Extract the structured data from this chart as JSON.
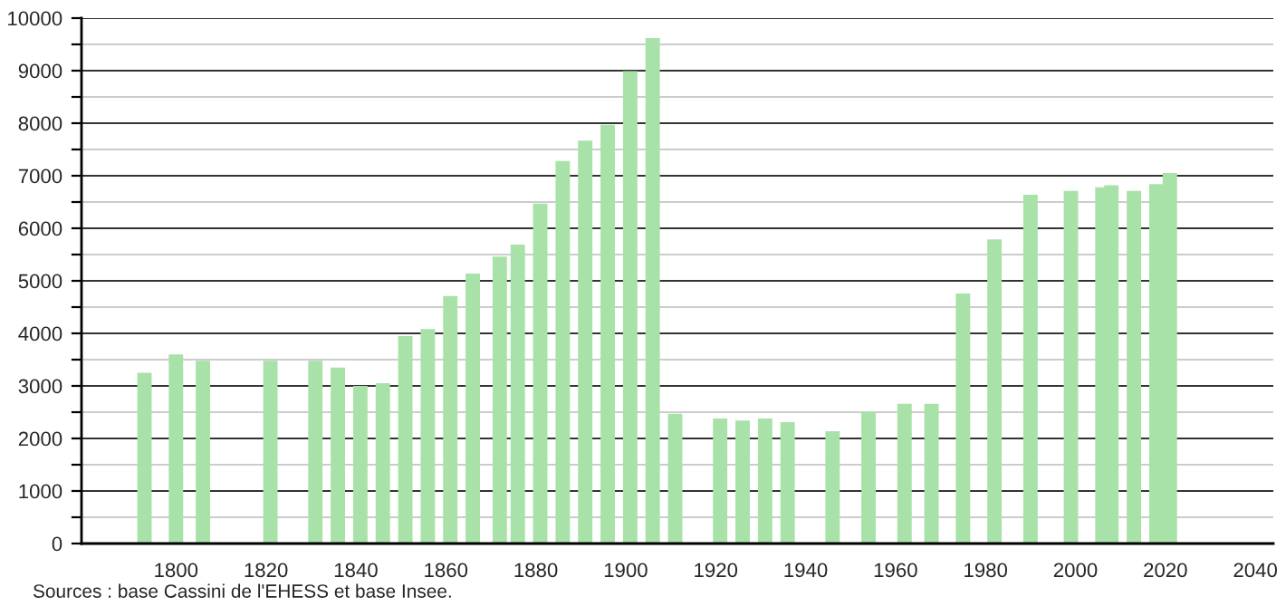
{
  "chart_data": {
    "type": "bar",
    "x": [
      1793,
      1800,
      1806,
      1821,
      1831,
      1836,
      1841,
      1846,
      1851,
      1856,
      1861,
      1866,
      1872,
      1876,
      1881,
      1886,
      1891,
      1896,
      1901,
      1906,
      1911,
      1921,
      1926,
      1931,
      1936,
      1946,
      1954,
      1962,
      1968,
      1975,
      1982,
      1990,
      1999,
      2006,
      2008,
      2013,
      2018,
      2021
    ],
    "values": [
      3250,
      3600,
      3480,
      3480,
      3480,
      3350,
      3000,
      3050,
      3950,
      4080,
      4710,
      5140,
      5460,
      5690,
      6470,
      7280,
      7670,
      7970,
      8990,
      9620,
      2470,
      2380,
      2340,
      2380,
      2310,
      2140,
      2510,
      2660,
      2660,
      4760,
      5790,
      6640,
      6710,
      6780,
      6820,
      6710,
      6840,
      7050
    ],
    "color": "#a8e2a8",
    "xlim": [
      1779,
      2044
    ],
    "xticks": [
      1800,
      1820,
      1840,
      1860,
      1880,
      1900,
      1920,
      1940,
      1960,
      1980,
      2000,
      2020,
      2040
    ],
    "ylim": [
      0,
      10000
    ],
    "yticks": [
      0,
      {
        "value": 500,
        "label": null
      },
      1000,
      {
        "value": 1500,
        "label": null
      },
      2000,
      {
        "value": 2500,
        "label": null
      },
      3000,
      {
        "value": 3500,
        "label": null
      },
      4000,
      {
        "value": 4500,
        "label": null
      },
      5000,
      {
        "value": 5500,
        "label": null
      },
      6000,
      {
        "value": 6500,
        "label": null
      },
      7000,
      {
        "value": 7500,
        "label": null
      },
      8000,
      {
        "value": 8500,
        "label": null
      },
      9000,
      {
        "value": 9500,
        "label": null
      },
      10000
    ],
    "grid": "y",
    "annotations": [
      "Sources : base Cassini de l'EHESS et base Insee."
    ]
  }
}
